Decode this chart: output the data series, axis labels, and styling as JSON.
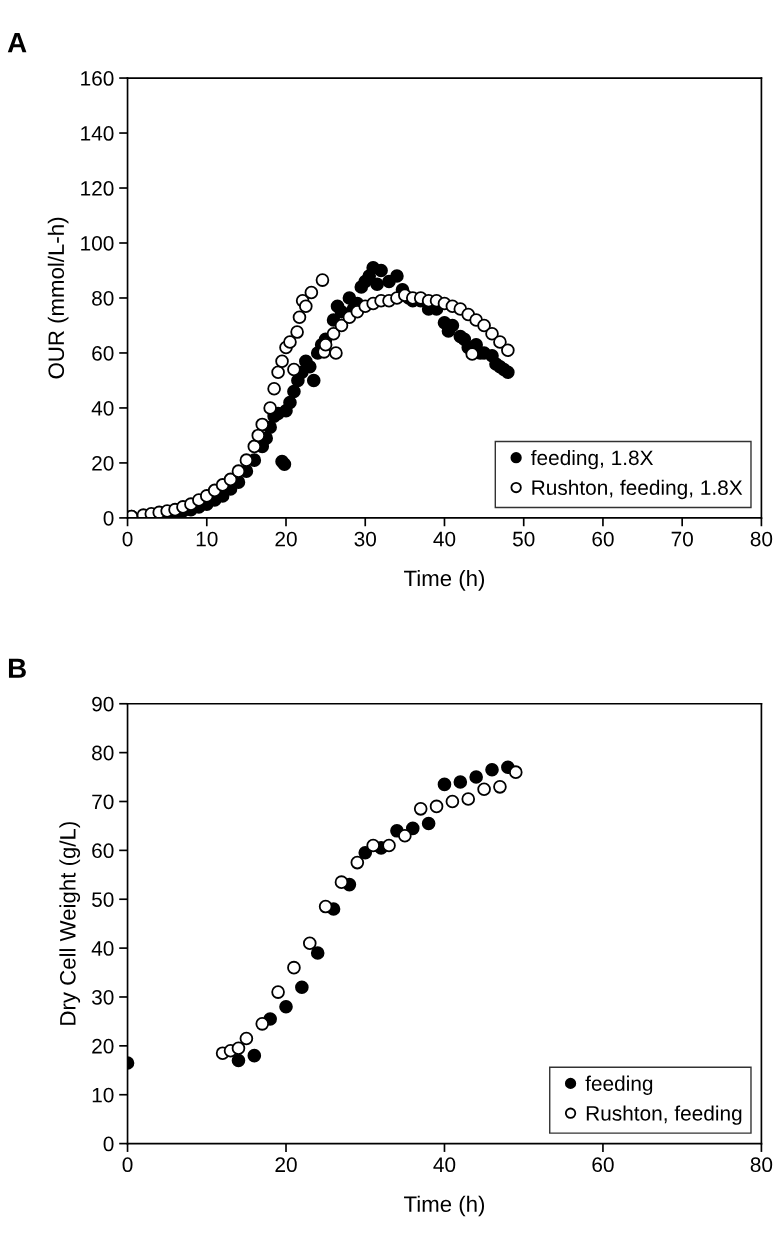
{
  "chart_data": [
    {
      "type": "scatter",
      "title": "A",
      "xlabel": "Time (h)",
      "ylabel": "OUR (mmol/L-h)",
      "xlim": [
        0,
        80
      ],
      "xticks": [
        0,
        10,
        20,
        30,
        40,
        50,
        60,
        70,
        80
      ],
      "ylim": [
        0,
        160
      ],
      "yticks": [
        0,
        20,
        40,
        60,
        80,
        100,
        120,
        140,
        160
      ],
      "grid": false,
      "legend": "bottom right",
      "marker": "circle",
      "series": [
        {
          "name": "feeding, 1.8X",
          "color": "#000000",
          "x": [
            0.5,
            6,
            7,
            8,
            9,
            10,
            11,
            12,
            13,
            14,
            15,
            16,
            17,
            17.5,
            18,
            18.5,
            19,
            19.5,
            19.8,
            20,
            20.5,
            21,
            21.5,
            22,
            22.5,
            23,
            23.5,
            24,
            24.5,
            25,
            26,
            26.5,
            27,
            28,
            28.5,
            29,
            29.5,
            30,
            30.5,
            31,
            31.5,
            32,
            33,
            34,
            34.7,
            35.5,
            36,
            37,
            38,
            39,
            40,
            40.5,
            41,
            42,
            42.5,
            43,
            44,
            44.5,
            45,
            46,
            46.5,
            47,
            47.5,
            48
          ],
          "values": [
            0.5,
            2,
            2.5,
            3,
            4,
            5,
            6.5,
            8,
            10.5,
            13,
            17,
            21,
            26,
            29,
            33,
            37,
            38,
            20.5,
            19.5,
            39,
            42,
            46,
            50,
            53,
            57,
            55,
            50,
            60,
            63,
            65,
            72,
            77,
            75,
            80,
            76,
            78,
            84,
            86,
            88,
            91,
            85,
            90,
            86,
            88,
            83,
            80,
            79,
            79,
            76,
            76,
            71,
            68,
            70,
            66,
            65,
            62,
            63,
            60,
            60,
            59,
            56,
            55,
            54,
            53
          ]
        },
        {
          "name": "Rushton, feeding, 1.8X",
          "color": "#ffffff",
          "x": [
            0.5,
            2,
            3,
            4,
            5,
            6,
            7,
            8,
            9,
            10,
            11,
            12,
            13,
            14,
            15,
            16,
            16.5,
            17,
            18,
            18.5,
            19,
            19.5,
            20,
            20.5,
            21,
            21.4,
            21.7,
            22.1,
            22.5,
            23.2,
            24.6,
            24.8,
            25,
            26,
            26.3,
            27,
            28,
            29,
            30,
            31,
            32,
            33,
            34,
            35,
            36,
            37,
            38,
            39,
            40,
            41,
            42,
            43,
            43.5,
            44,
            45,
            46,
            47,
            48
          ],
          "values": [
            0.5,
            1,
            1.5,
            2,
            2.5,
            3,
            4,
            5,
            6.5,
            8,
            10,
            12,
            14,
            17,
            21,
            26,
            30,
            34,
            40,
            47,
            53,
            57,
            62,
            64,
            54,
            67.6,
            73,
            79,
            77,
            82,
            86.5,
            60.4,
            63,
            67,
            60,
            70,
            73,
            75,
            77,
            78,
            79,
            79,
            80,
            81,
            80,
            80,
            79,
            79,
            78,
            77,
            76,
            74,
            59.6,
            72,
            70,
            67,
            64,
            61
          ]
        }
      ]
    },
    {
      "type": "scatter",
      "title": "B",
      "xlabel": "Time (h)",
      "ylabel": "Dry Cell Weight (g/L)",
      "xlim": [
        0,
        80
      ],
      "xticks": [
        0,
        20,
        40,
        60,
        80
      ],
      "ylim": [
        0,
        90
      ],
      "yticks": [
        0,
        10,
        20,
        30,
        40,
        50,
        60,
        70,
        80,
        90
      ],
      "grid": false,
      "legend": "bottom right",
      "marker": "circle",
      "series": [
        {
          "name": "feeding",
          "color": "#000000",
          "x": [
            0,
            14,
            16,
            18,
            20,
            22,
            24,
            26,
            28,
            30,
            32,
            34,
            36,
            38,
            40,
            42,
            44,
            46,
            48
          ],
          "values": [
            16.5,
            17,
            18,
            25.5,
            28,
            32,
            39,
            48,
            53,
            59.5,
            60.5,
            64,
            64.5,
            65.5,
            73.5,
            74,
            75,
            76.5,
            77
          ]
        },
        {
          "name": "Rushton, feeding",
          "color": "#ffffff",
          "x": [
            12,
            13,
            14,
            15,
            17,
            19,
            21,
            23,
            25,
            27,
            29,
            31,
            33,
            35,
            37,
            39,
            41,
            43,
            45,
            47,
            49
          ],
          "values": [
            18.5,
            19,
            19.5,
            21.5,
            24.5,
            31,
            36,
            41,
            48.5,
            53.5,
            57.5,
            61,
            61,
            63,
            68.5,
            69,
            70,
            70.5,
            72.5,
            73,
            76
          ]
        }
      ]
    }
  ]
}
